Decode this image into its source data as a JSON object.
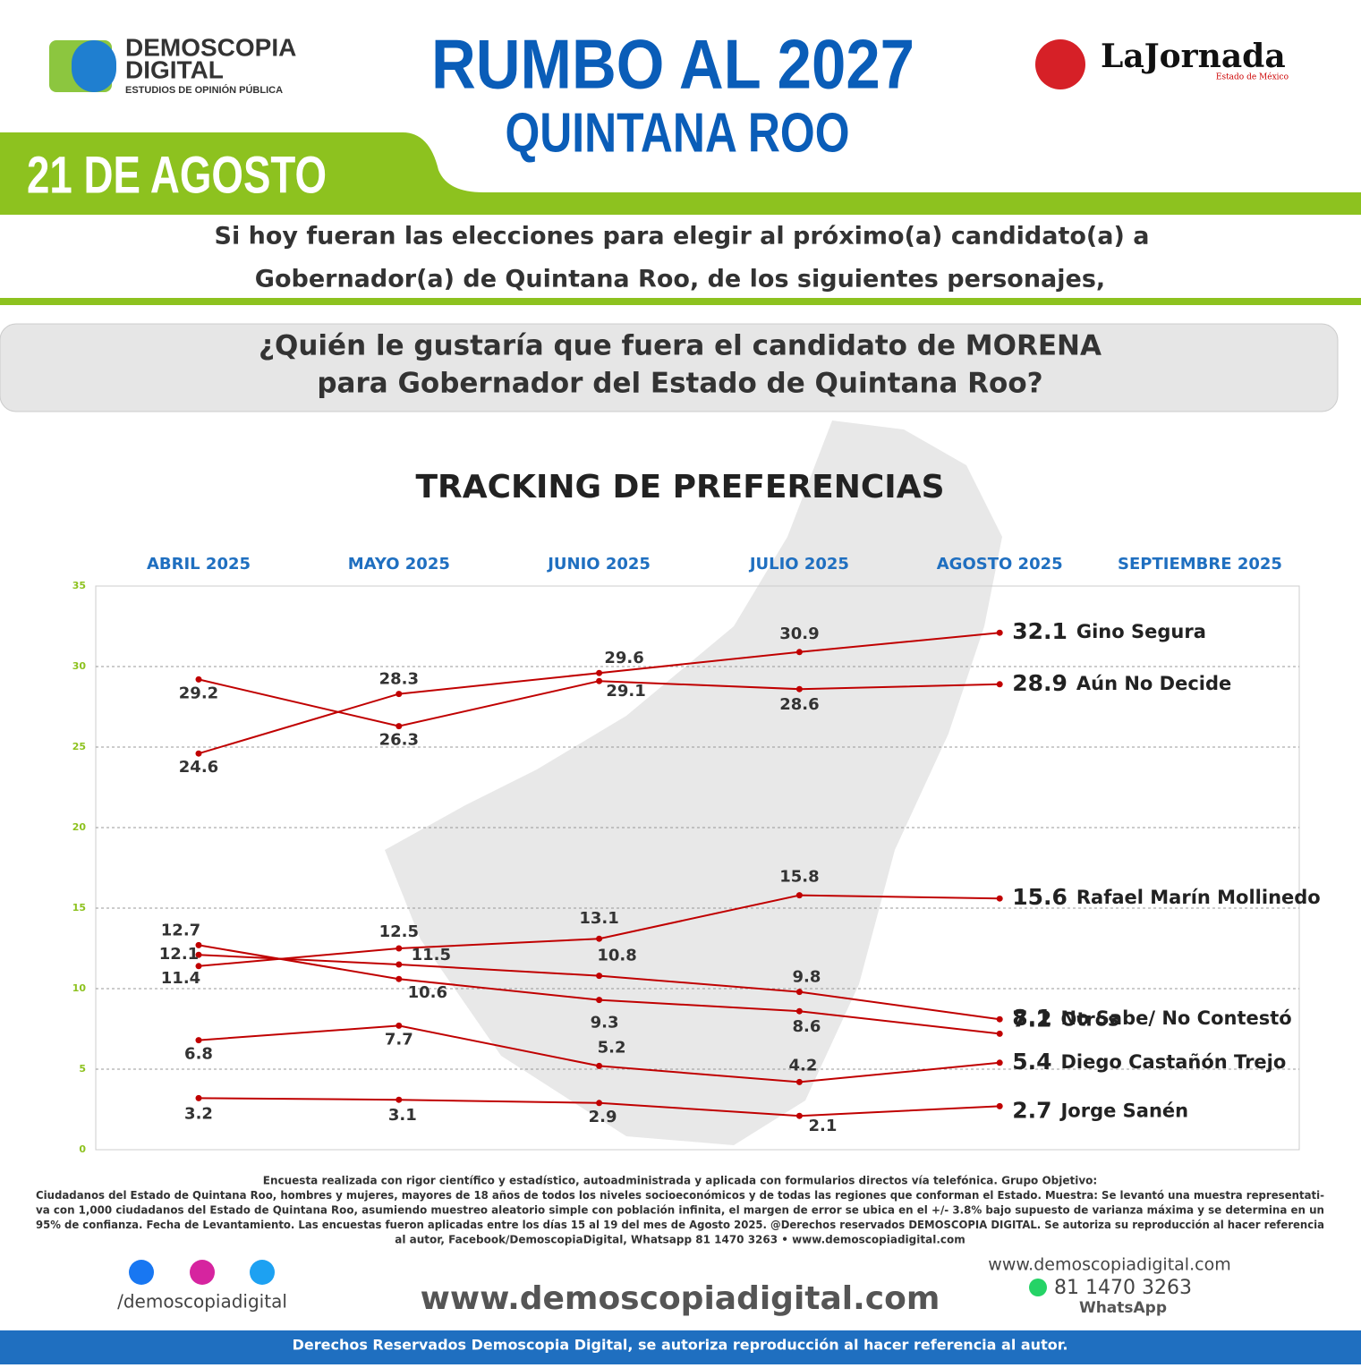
{
  "header": {
    "brand": "DEMOSCOPIA",
    "brand2": "DIGITAL",
    "brand_sub": "ESTUDIOS DE OPINIÓN PÚBLICA",
    "title": "RUMBO AL 2027",
    "subtitle": "QUINTANA ROO",
    "date": "21 DE AGOSTO",
    "partner": "LaJornada",
    "partner_sub": "Estado de México"
  },
  "intro": [
    "Si hoy fueran las elecciones para elegir al próximo(a) candidato(a) a",
    "Gobernador(a) de Quintana Roo, de los siguientes personajes,"
  ],
  "question": [
    "¿Quién le gustaría que fuera el candidato de MORENA",
    "para Gobernador del Estado de Quintana Roo?"
  ],
  "chart_data": {
    "type": "line",
    "title": "TRACKING DE PREFERENCIAS",
    "categories": [
      "ABRIL 2025",
      "MAYO 2025",
      "JUNIO 2025",
      "JULIO 2025",
      "AGOSTO 2025",
      "SEPTIEMBRE 2025"
    ],
    "ylim": [
      0,
      35
    ],
    "yticks": [
      0,
      5,
      10,
      15,
      20,
      25,
      30,
      35
    ],
    "grid": true,
    "series": [
      {
        "name": "Gino Segura",
        "color": "#c00000",
        "values": [
          24.6,
          28.3,
          29.6,
          30.9,
          32.1,
          null
        ]
      },
      {
        "name": "Aún No Decide",
        "color": "#c00000",
        "values": [
          29.2,
          26.3,
          29.1,
          28.6,
          28.9,
          null
        ]
      },
      {
        "name": "Rafael Marín Mollinedo",
        "color": "#c00000",
        "values": [
          11.4,
          12.5,
          13.1,
          15.8,
          15.6,
          null
        ]
      },
      {
        "name": "No Sabe/ No Contestó",
        "color": "#c00000",
        "values": [
          12.1,
          11.5,
          10.8,
          9.8,
          8.1,
          null
        ]
      },
      {
        "name": "Otros",
        "color": "#c00000",
        "values": [
          12.7,
          10.6,
          9.3,
          8.6,
          7.2,
          null
        ]
      },
      {
        "name": "Diego Castañón Trejo",
        "color": "#c00000",
        "values": [
          6.8,
          7.7,
          5.2,
          4.2,
          5.4,
          null
        ]
      },
      {
        "name": "Jorge Sanén",
        "color": "#c00000",
        "values": [
          3.2,
          3.1,
          2.9,
          2.1,
          2.7,
          null
        ]
      }
    ]
  },
  "footer": {
    "note": [
      "Encuesta realizada con rigor científico y estadístico, autoadministrada y aplicada con formularios directos vía telefónica. Grupo Objetivo:",
      "Ciudadanos del Estado de Quintana Roo, hombres y mujeres, mayores de 18 años de todos los niveles socioeconómicos y de todas las regiones que conforman el Estado. Muestra: Se levantó una muestra representati-",
      "va con 1,000 ciudadanos del Estado de Quintana Roo, asumiendo muestreo aleatorio simple con población infinita, el margen de error se ubica en el +/- 3.8% bajo supuesto de varianza máxima y se determina en un",
      "95% de confianza. Fecha de Levantamiento. Las encuestas fueron aplicadas entre los días 15 al 19 del mes de Agosto 2025. @Derechos reservados DEMOSCOPIA DIGITAL. Se autoriza su reproducción al hacer referencia",
      "al autor, Facebook/DemoscopiaDigital, Whatsapp 81 1470 3263 • www.demoscopiadigital.com"
    ],
    "social": "/demoscopiadigital",
    "site": "www.demoscopiadigital.com",
    "site_small": "www.demoscopiadigital.com",
    "phone": "81 1470 3263",
    "whatsapp": "WhatsApp",
    "rights": "Derechos Reservados Demoscopia Digital, se autoriza reproducción al hacer referencia al autor."
  }
}
